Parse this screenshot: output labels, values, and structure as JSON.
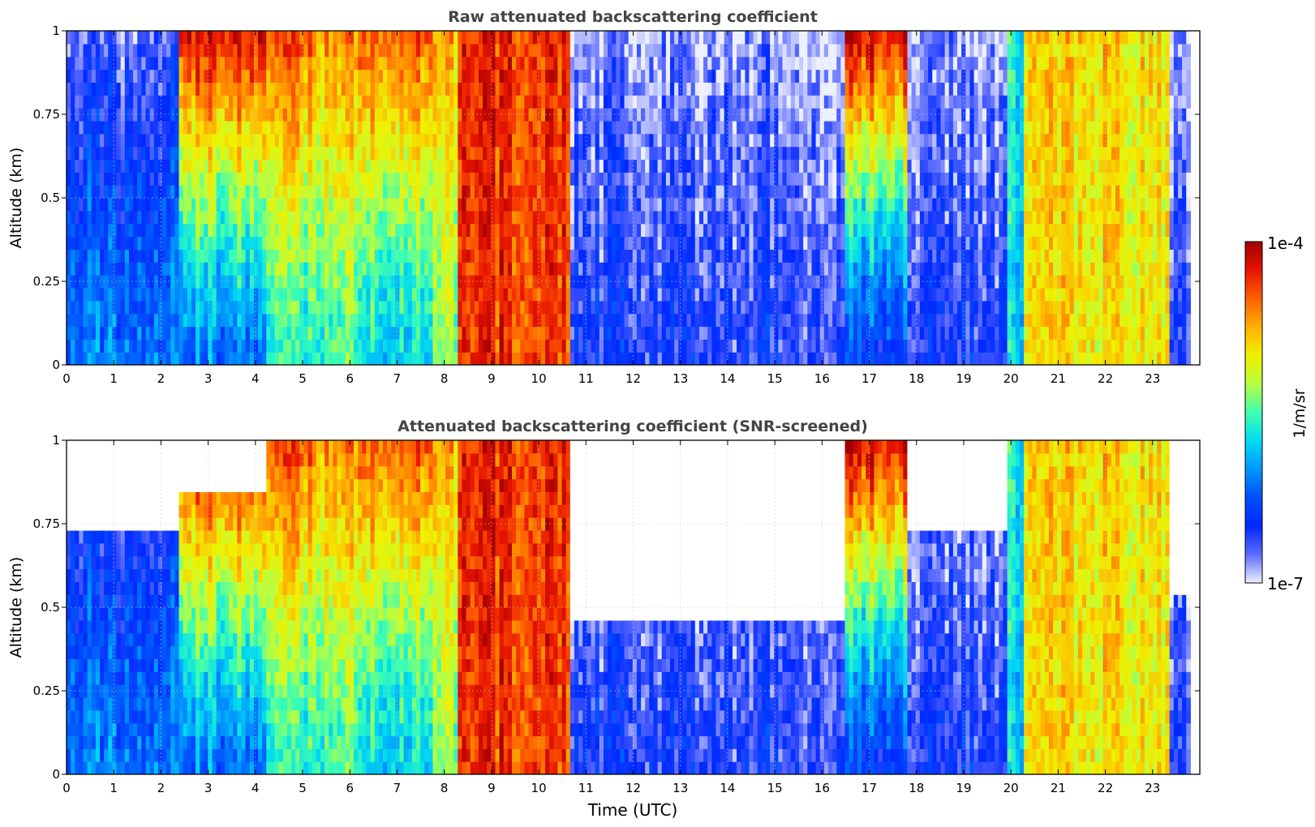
{
  "chart_data": [
    {
      "type": "heatmap",
      "title": "Raw attenuated backscattering coefficient",
      "xlabel": "",
      "ylabel": "Altitude (km)",
      "xlim": [
        0,
        24
      ],
      "ylim": [
        0,
        1
      ],
      "x_ticks": [
        "0",
        "1",
        "2",
        "3",
        "4",
        "5",
        "6",
        "7",
        "8",
        "9",
        "10",
        "11",
        "12",
        "13",
        "14",
        "15",
        "16",
        "17",
        "18",
        "19",
        "20",
        "21",
        "22",
        "23"
      ],
      "y_ticks": [
        "0",
        "0.25",
        "0.5",
        "0.75",
        "1"
      ],
      "grid": true,
      "data_end_time": 23.8,
      "regions": [
        {
          "x": [
            0.0,
            2.4
          ],
          "surface_level": 0.3,
          "aloft_level": 0.1,
          "level_unit": "fraction of colorbar"
        },
        {
          "x": [
            2.4,
            4.2
          ],
          "surface_level": 0.3,
          "aloft_level": 0.95,
          "level_unit": "fraction of colorbar"
        },
        {
          "x": [
            4.2,
            5.2
          ],
          "surface_level": 0.45,
          "aloft_level": 0.85,
          "level_unit": "fraction of colorbar"
        },
        {
          "x": [
            5.2,
            6.2
          ],
          "surface_level": 0.5,
          "aloft_level": 0.8,
          "level_unit": "fraction of colorbar"
        },
        {
          "x": [
            6.2,
            7.8
          ],
          "surface_level": 0.4,
          "aloft_level": 0.85,
          "level_unit": "fraction of colorbar"
        },
        {
          "x": [
            7.8,
            8.3
          ],
          "surface_level": 0.55,
          "aloft_level": 0.75,
          "level_unit": "fraction of colorbar"
        },
        {
          "x": [
            8.3,
            10.7
          ],
          "surface_level": 0.88,
          "aloft_level": 0.9,
          "level_unit": "fraction of colorbar"
        },
        {
          "x": [
            10.7,
            16.5
          ],
          "surface_level": 0.15,
          "aloft_level": 0.05,
          "level_unit": "fraction of colorbar"
        },
        {
          "x": [
            16.5,
            17.8
          ],
          "surface_level": 0.2,
          "aloft_level": 0.95,
          "level_unit": "fraction of colorbar"
        },
        {
          "x": [
            17.8,
            19.9
          ],
          "surface_level": 0.15,
          "aloft_level": 0.05,
          "level_unit": "fraction of colorbar"
        },
        {
          "x": [
            19.9,
            20.3
          ],
          "surface_level": 0.4,
          "aloft_level": 0.45,
          "level_unit": "fraction of colorbar"
        },
        {
          "x": [
            20.3,
            23.4
          ],
          "surface_level": 0.68,
          "aloft_level": 0.7,
          "level_unit": "fraction of colorbar"
        },
        {
          "x": [
            23.4,
            23.8
          ],
          "surface_level": 0.15,
          "aloft_level": 0.05,
          "level_unit": "fraction of colorbar"
        }
      ]
    },
    {
      "type": "heatmap",
      "title": "Attenuated backscattering coefficient (SNR-screened)",
      "xlabel": "Time (UTC)",
      "ylabel": "Altitude (km)",
      "xlim": [
        0,
        24
      ],
      "ylim": [
        0,
        1
      ],
      "x_ticks": [
        "0",
        "1",
        "2",
        "3",
        "4",
        "5",
        "6",
        "7",
        "8",
        "9",
        "10",
        "11",
        "12",
        "13",
        "14",
        "15",
        "16",
        "17",
        "18",
        "19",
        "20",
        "21",
        "22",
        "23"
      ],
      "y_ticks": [
        "0",
        "0.25",
        "0.5",
        "0.75",
        "1"
      ],
      "grid": true,
      "data_end_time": 23.8,
      "screened_out": "white (no data above signal-to-noise threshold)",
      "regions": [
        {
          "x": [
            0.0,
            2.4
          ],
          "surface_level": 0.3,
          "aloft_level": 0.1,
          "top_of_valid_data_km": 0.75,
          "level_unit": "fraction of colorbar"
        },
        {
          "x": [
            2.4,
            4.2
          ],
          "surface_level": 0.3,
          "aloft_level": 0.95,
          "top_of_valid_data_km": 0.85,
          "level_unit": "fraction of colorbar"
        },
        {
          "x": [
            4.2,
            5.2
          ],
          "surface_level": 0.45,
          "aloft_level": 0.85,
          "top_of_valid_data_km": 1.0,
          "level_unit": "fraction of colorbar"
        },
        {
          "x": [
            5.2,
            6.2
          ],
          "surface_level": 0.5,
          "aloft_level": 0.8,
          "top_of_valid_data_km": 1.0,
          "level_unit": "fraction of colorbar"
        },
        {
          "x": [
            6.2,
            7.8
          ],
          "surface_level": 0.4,
          "aloft_level": 0.85,
          "top_of_valid_data_km": 1.0,
          "level_unit": "fraction of colorbar"
        },
        {
          "x": [
            7.8,
            8.3
          ],
          "surface_level": 0.55,
          "aloft_level": 0.75,
          "top_of_valid_data_km": 1.0,
          "level_unit": "fraction of colorbar"
        },
        {
          "x": [
            8.3,
            10.7
          ],
          "surface_level": 0.88,
          "aloft_level": 0.9,
          "top_of_valid_data_km": 1.0,
          "level_unit": "fraction of colorbar"
        },
        {
          "x": [
            10.7,
            16.5
          ],
          "surface_level": 0.15,
          "aloft_level": 0.05,
          "top_of_valid_data_km": 0.45,
          "level_unit": "fraction of colorbar"
        },
        {
          "x": [
            16.5,
            17.8
          ],
          "surface_level": 0.2,
          "aloft_level": 0.95,
          "top_of_valid_data_km": 1.0,
          "level_unit": "fraction of colorbar"
        },
        {
          "x": [
            17.8,
            19.9
          ],
          "surface_level": 0.15,
          "aloft_level": 0.05,
          "top_of_valid_data_km": 0.75,
          "level_unit": "fraction of colorbar"
        },
        {
          "x": [
            19.9,
            20.3
          ],
          "surface_level": 0.4,
          "aloft_level": 0.45,
          "top_of_valid_data_km": 1.0,
          "level_unit": "fraction of colorbar"
        },
        {
          "x": [
            20.3,
            23.4
          ],
          "surface_level": 0.68,
          "aloft_level": 0.7,
          "top_of_valid_data_km": 1.0,
          "level_unit": "fraction of colorbar"
        },
        {
          "x": [
            23.4,
            23.8
          ],
          "surface_level": 0.15,
          "aloft_level": 0.05,
          "top_of_valid_data_km": 0.55,
          "level_unit": "fraction of colorbar"
        }
      ]
    }
  ],
  "colorbar": {
    "label": "1/m/sr",
    "min_label": "1e-7",
    "max_label": "1e-4",
    "min_value": 1e-07,
    "max_value": 0.0001,
    "scale": "log",
    "colors": [
      "#eef0ff",
      "#5c6cff",
      "#0028ff",
      "#0050ff",
      "#0096ff",
      "#00dcf0",
      "#40ffb0",
      "#b8ff40",
      "#f0f000",
      "#ffb000",
      "#ff6000",
      "#e81400",
      "#a00000"
    ]
  },
  "colors": {
    "title_text": "#444444",
    "axis_text": "#000000",
    "grid": "#cccccc"
  }
}
